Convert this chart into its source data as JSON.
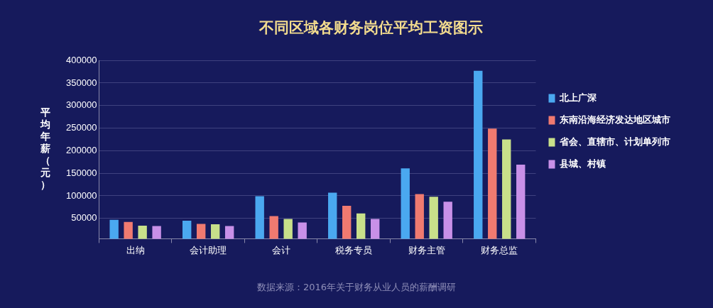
{
  "chart_data": {
    "type": "bar",
    "title": "不同区域各财务岗位平均工资图示",
    "ylabel": "平均年薪（元）",
    "categories": [
      "出纳",
      "会计助理",
      "会计",
      "税务专员",
      "财务主管",
      "财务总监"
    ],
    "series": [
      {
        "name": "北上广深",
        "color": "#4aa8f0",
        "values": [
          47000,
          45000,
          99000,
          107000,
          161000,
          377000
        ]
      },
      {
        "name": "东南沿海经济发达地区城市",
        "color": "#f07a70",
        "values": [
          42000,
          38000,
          55000,
          78000,
          104000,
          249000
        ]
      },
      {
        "name": "省会、直辖市、计划单列市",
        "color": "#c8e08a",
        "values": [
          34000,
          37000,
          49000,
          61000,
          98000,
          225000
        ]
      },
      {
        "name": "县城、村镇",
        "color": "#c890e8",
        "values": [
          33000,
          33000,
          41000,
          49000,
          87000,
          169000
        ]
      }
    ],
    "ylim": [
      5000,
      400000
    ],
    "yticks": [
      50000,
      100000,
      150000,
      200000,
      250000,
      300000,
      350000,
      400000
    ],
    "grid": "y",
    "legend": "right",
    "annotations": [
      "数据来源：2016年关于财务从业人员的薪酬调研"
    ]
  }
}
